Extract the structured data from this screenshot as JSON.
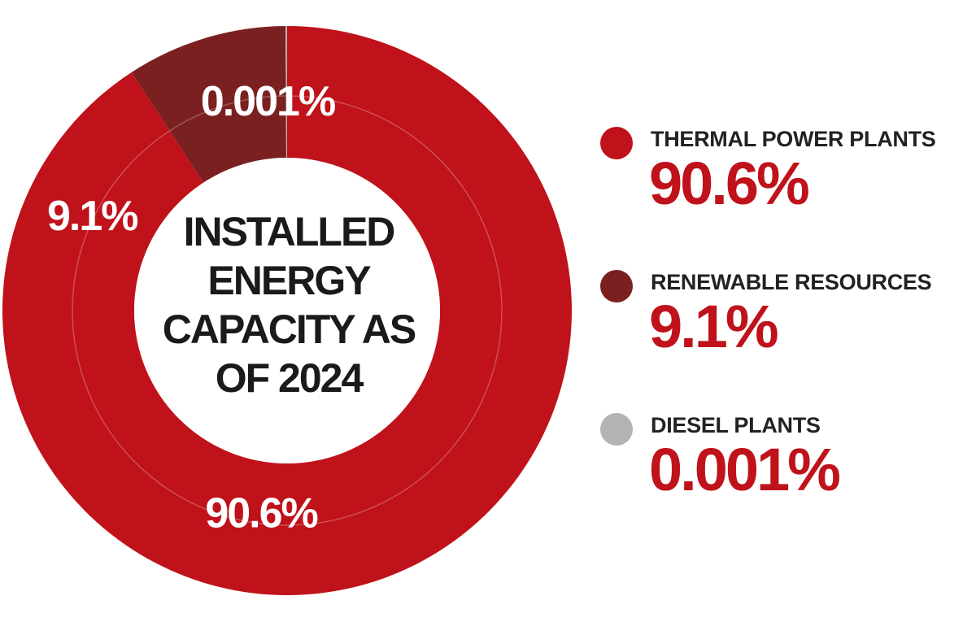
{
  "chart_data": {
    "type": "pie",
    "title": "INSTALLED ENERGY CAPACITY AS OF 2024",
    "categories": [
      "THERMAL POWER PLANTS",
      "RENEWABLE RESOURCES",
      "DIESEL PLANTS"
    ],
    "values": [
      90.6,
      9.1,
      0.001
    ],
    "value_labels": [
      "90.6%",
      "9.1%",
      "0.001%"
    ],
    "colors": [
      "#c0121a",
      "#7a2021",
      "#b3b3b3"
    ],
    "legend_position": "right",
    "center_title_lines": [
      "INSTALLED",
      "ENERGY",
      "CAPACITY AS",
      "OF 2024"
    ]
  }
}
